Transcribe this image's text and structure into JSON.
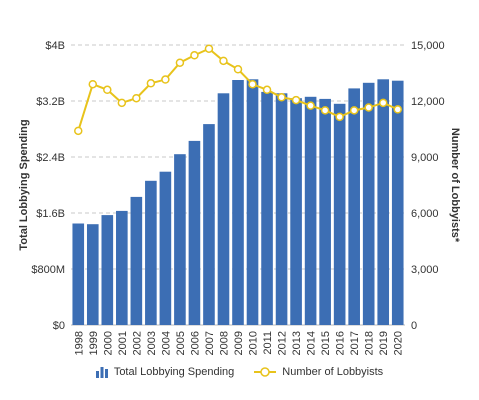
{
  "chart_data": {
    "type": "bar+line",
    "categories": [
      "1998",
      "1999",
      "2000",
      "2001",
      "2002",
      "2003",
      "2004",
      "2005",
      "2006",
      "2007",
      "2008",
      "2009",
      "2010",
      "2011",
      "2012",
      "2013",
      "2014",
      "2015",
      "2016",
      "2017",
      "2018",
      "2019",
      "2020"
    ],
    "series": [
      {
        "name": "Total Lobbying Spending",
        "type": "bar",
        "axis": "left",
        "color": "#3c6eb4",
        "values": [
          1.45,
          1.44,
          1.57,
          1.63,
          1.83,
          2.06,
          2.19,
          2.44,
          2.63,
          2.87,
          3.31,
          3.5,
          3.51,
          3.33,
          3.31,
          3.24,
          3.26,
          3.23,
          3.16,
          3.38,
          3.46,
          3.51,
          3.49
        ]
      },
      {
        "name": "Number of Lobbyists",
        "type": "line",
        "axis": "right",
        "color": "#e8c31b",
        "values": [
          10400,
          12900,
          12600,
          11900,
          12150,
          12950,
          13150,
          14050,
          14450,
          14800,
          14150,
          13700,
          12900,
          12600,
          12200,
          12050,
          11750,
          11500,
          11150,
          11500,
          11650,
          11900,
          11550
        ]
      }
    ],
    "y_left": {
      "title": "Total Lobbying Spending",
      "lim": [
        0,
        4
      ],
      "ticks": [
        0,
        0.8,
        1.6,
        2.4,
        3.2,
        4
      ],
      "tick_labels": [
        "$0",
        "$800M",
        "$1.6B",
        "$2.4B",
        "$3.2B",
        "$4B"
      ]
    },
    "y_right": {
      "title": "Number of Lobbyists*",
      "lim": [
        0,
        15000
      ],
      "ticks": [
        0,
        3000,
        6000,
        9000,
        12000,
        15000
      ],
      "tick_labels": [
        "0",
        "3,000",
        "6,000",
        "9,000",
        "12,000",
        "15,000"
      ]
    },
    "grid": true,
    "grid_color": "#c8c8c8",
    "legend_position": "bottom",
    "legend": {
      "bar_label": "Total Lobbying Spending",
      "line_label": "Number of Lobbyists"
    }
  }
}
